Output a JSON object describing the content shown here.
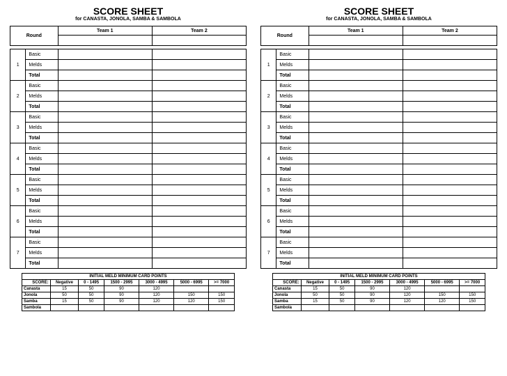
{
  "title": "SCORE SHEET",
  "subtitle": "for CANASTA, JONOLA, SAMBA & SAMBOLA",
  "headers": {
    "round": "Round",
    "team1": "Team 1",
    "team2": "Team 2"
  },
  "rowLabels": {
    "basic": "Basic",
    "melds": "Melds",
    "total": "Total"
  },
  "rounds": [
    "1",
    "2",
    "3",
    "4",
    "5",
    "6",
    "7"
  ],
  "meldTable": {
    "caption": "INITIAL MELD MINIMUM CARD POINTS",
    "scoreLabel": "SCORE:",
    "columns": [
      "Negative",
      "0 - 1495",
      "1500 - 2995",
      "3000 - 4995",
      "5000 - 6995",
      ">= 7000"
    ],
    "rows": [
      {
        "label": "Canasta",
        "values": [
          "15",
          "50",
          "90",
          "120",
          "",
          ""
        ]
      },
      {
        "label": "Jonola",
        "values": [
          "50",
          "50",
          "90",
          "120",
          "150",
          "150"
        ]
      },
      {
        "label": "Samba",
        "values": [
          "15",
          "50",
          "90",
          "120",
          "120",
          "150"
        ]
      },
      {
        "label": "Sambola",
        "values": [
          "",
          "",
          "",
          "",
          "",
          ""
        ]
      }
    ]
  }
}
